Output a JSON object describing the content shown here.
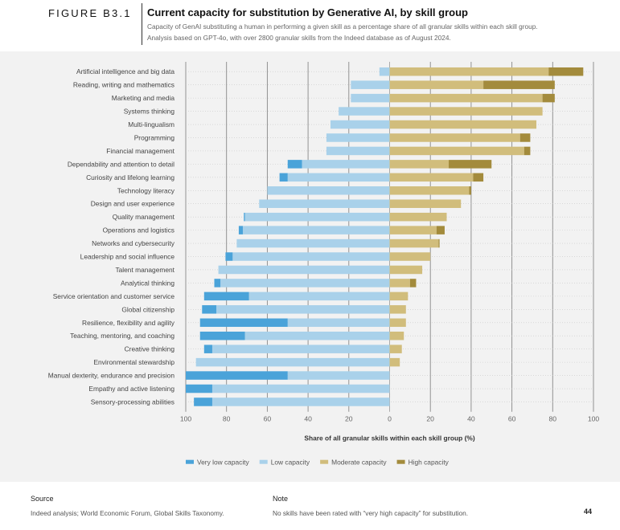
{
  "figure_label": "FIGURE B3.1",
  "title": "Current capacity for substitution by Generative AI, by skill group",
  "subtitle_lines": [
    "Capacity of GenAI substituting a human in performing a given skill as a percentage share of all granular skills within each skill group.",
    "Analysis based on GPT-4o, with over 2800 granular skills from the Indeed database as of August 2024."
  ],
  "colors": {
    "very_low": "#4aa3d9",
    "low": "#a9d1ea",
    "moderate": "#d1bd7c",
    "high": "#a38b3c"
  },
  "chart_data": {
    "type": "bar",
    "orientation": "horizontal-diverging",
    "xlabel": "Share of all granular skills within each skill group (%)",
    "xlim": [
      -100,
      100
    ],
    "x_ticks": [
      -100,
      -80,
      -60,
      -40,
      -20,
      0,
      20,
      40,
      60,
      80,
      100
    ],
    "x_tick_labels": [
      "100",
      "80",
      "60",
      "40",
      "20",
      "0",
      "20",
      "40",
      "60",
      "80",
      "100"
    ],
    "grid": true,
    "legend_position": "bottom",
    "categories": [
      "Artificial intelligence and big data",
      "Reading, writing and mathematics",
      "Marketing and media",
      "Systems thinking",
      "Multi-lingualism",
      "Programming",
      "Financial management",
      "Dependability and attention to detail",
      "Curiosity and lifelong learning",
      "Technology literacy",
      "Design and user experience",
      "Quality management",
      "Operations and logistics",
      "Networks and cybersecurity",
      "Leadership and social influence",
      "Talent management",
      "Analytical thinking",
      "Service orientation and customer service",
      "Global citizenship",
      "Resilience, flexibility and agility",
      "Teaching, mentoring, and coaching",
      "Creative thinking",
      "Environmental stewardship",
      "Manual dexterity, endurance and precision",
      "Empathy and active listening",
      "Sensory-processing abilities"
    ],
    "series": [
      {
        "name": "Very low capacity",
        "key": "very_low",
        "side": "left",
        "values": [
          0,
          0,
          0,
          0,
          0,
          0,
          0,
          7,
          4,
          0,
          0,
          0.5,
          2,
          0,
          3.5,
          0,
          3,
          22,
          7,
          43,
          22,
          4,
          0,
          50,
          13,
          9
        ]
      },
      {
        "name": "Low capacity",
        "key": "low",
        "side": "left",
        "values": [
          5,
          19,
          19,
          25,
          29,
          31,
          31,
          43,
          50,
          60,
          64,
          71,
          72,
          75,
          77,
          84,
          83,
          69,
          85,
          50,
          71,
          87,
          95,
          50,
          87,
          87
        ]
      },
      {
        "name": "Moderate capacity",
        "key": "moderate",
        "side": "right",
        "values": [
          78,
          46,
          75,
          75,
          72,
          64,
          66,
          29,
          41,
          39,
          35,
          28,
          23,
          24,
          20,
          16,
          10,
          9,
          8,
          8,
          7,
          6,
          5,
          0,
          0,
          0
        ]
      },
      {
        "name": "High capacity",
        "key": "high",
        "side": "right",
        "values": [
          17,
          35,
          6,
          0,
          0,
          5,
          3,
          21,
          5,
          1,
          0,
          0,
          4,
          0.5,
          0,
          0,
          3,
          0,
          0,
          0,
          0,
          0,
          0,
          0,
          0,
          0
        ]
      }
    ]
  },
  "footer": {
    "source_heading": "Source",
    "source_text": "Indeed analysis; World Economic Forum, Global Skills Taxonomy.",
    "note_heading": "Note",
    "note_text": "No skills have been rated with “very high capacity” for substitution.",
    "page_number": "44"
  }
}
